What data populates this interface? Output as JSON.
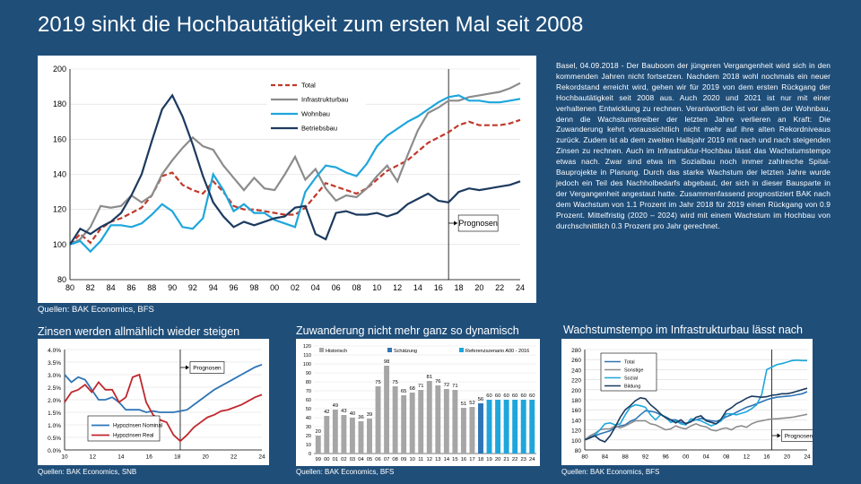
{
  "title": "2019 sinkt die Hochbautätigkeit zum ersten Mal seit 2008",
  "body_text": "Basel, 04.09.2018 - Der Bauboom der jüngeren Vergangenheit wird sich in den kommenden Jahren nicht fortsetzen. Nachdem 2018 wohl nochmals ein neuer Rekordstand erreicht wird, gehen wir für 2019 von dem ersten Rückgang der Hochbautätigkeit seit 2008 aus. Auch 2020 und 2021 ist nur mit einer verhaltenen Entwicklung zu rechnen. Verantwortlich ist vor allem der Wohnbau, denn die Wachstumstreiber der letzten Jahre verlieren an Kraft: Die Zuwanderung kehrt voraussichtlich nicht mehr auf ihre alten Rekordniveaus zurück. Zudem ist ab dem zweiten Halbjahr 2019 mit nach und nach steigenden Zinsen zu rechnen. Auch im Infrastruktur-Hochbau lässt das Wachstumstempo etwas nach. Zwar sind etwa im Sozialbau noch immer zahlreiche Spital-Bauprojekte in Planung. Durch das starke Wachstum der letzten Jahre wurde jedoch ein Teil des Nachholbedarfs abgebaut, der sich in dieser Bausparte in der Vergangenheit angestaut hatte. Zusammenfassend prognostiziert BAK nach dem Wachstum von 1.1 Prozent im Jahr 2018 für 2019 einen Rückgang von 0.9 Prozent. Mittelfristig (2020 – 2024) wird mit einem Wachstum im Hochbau von durchschnittlich 0.3 Prozent pro Jahr gerechnet.",
  "sources": {
    "main": "Quellen: BAK Economics, BFS",
    "zinsen": "Quellen: BAK Economics, SNB",
    "zuwanderung": "Quellen: BAK Economics, BFS",
    "infra": "Quellen: BAK Economics, BFS"
  },
  "subtitles": {
    "zinsen": "Zinsen werden allmählich wieder steigen",
    "zuwanderung": "Zuwanderung nicht mehr ganz so dynamisch",
    "infra": "Wachstumstempo im Infrastrukturbau lässt nach"
  },
  "chart_data": [
    {
      "type": "line",
      "x": [
        1980,
        1981,
        1982,
        1983,
        1984,
        1985,
        1986,
        1987,
        1988,
        1989,
        1990,
        1991,
        1992,
        1993,
        1994,
        1995,
        1996,
        1997,
        1998,
        1999,
        2000,
        2001,
        2002,
        2003,
        2004,
        2005,
        2006,
        2007,
        2008,
        2009,
        2010,
        2011,
        2012,
        2013,
        2014,
        2015,
        2016,
        2017,
        2018,
        2019,
        2020,
        2021,
        2022,
        2023,
        2024
      ],
      "xticks": [
        "80",
        "82",
        "84",
        "86",
        "88",
        "90",
        "92",
        "94",
        "96",
        "98",
        "00",
        "02",
        "04",
        "06",
        "08",
        "10",
        "12",
        "14",
        "16",
        "18",
        "20",
        "22",
        "24"
      ],
      "ylim": [
        80,
        200
      ],
      "yticks": [
        80,
        100,
        120,
        140,
        160,
        180,
        200
      ],
      "annotation": "Prognosen",
      "forecast_start": 2017,
      "series": [
        {
          "name": "Total",
          "color": "#c0392b",
          "dashed": true,
          "values": [
            100,
            106,
            101,
            109,
            113,
            115,
            118,
            121,
            128,
            139,
            141,
            134,
            131,
            129,
            136,
            130,
            122,
            120,
            120,
            119,
            118,
            117,
            117,
            121,
            128,
            135,
            133,
            131,
            129,
            132,
            137,
            142,
            145,
            148,
            153,
            158,
            161,
            164,
            168,
            170,
            168,
            168,
            168,
            169,
            171
          ]
        },
        {
          "name": "Infrastrukturbau",
          "color": "#8c8c8c",
          "dashed": false,
          "values": [
            100,
            103,
            110,
            122,
            121,
            122,
            128,
            124,
            128,
            140,
            148,
            155,
            161,
            156,
            154,
            145,
            138,
            131,
            138,
            132,
            131,
            140,
            150,
            137,
            143,
            132,
            125,
            128,
            127,
            132,
            139,
            145,
            136,
            151,
            165,
            175,
            178,
            182,
            182,
            184,
            185,
            186,
            187,
            189,
            192
          ]
        },
        {
          "name": "Wohnbau",
          "color": "#1ea6dc",
          "dashed": false,
          "values": [
            100,
            102,
            96,
            102,
            111,
            111,
            110,
            112,
            117,
            123,
            119,
            110,
            109,
            115,
            140,
            131,
            119,
            123,
            118,
            118,
            114,
            112,
            110,
            130,
            138,
            145,
            144,
            141,
            139,
            146,
            156,
            162,
            166,
            170,
            173,
            177,
            181,
            184,
            185,
            182,
            182,
            181,
            181,
            182,
            183
          ]
        },
        {
          "name": "Betriebsbau",
          "color": "#1c3a5e",
          "dashed": false,
          "values": [
            100,
            109,
            106,
            110,
            113,
            118,
            128,
            140,
            159,
            177,
            185,
            173,
            157,
            139,
            124,
            116,
            110,
            113,
            111,
            113,
            115,
            116,
            121,
            122,
            106,
            103,
            118,
            119,
            117,
            117,
            118,
            116,
            118,
            123,
            126,
            129,
            125,
            124,
            130,
            132,
            131,
            132,
            133,
            134,
            136
          ]
        }
      ]
    },
    {
      "type": "line",
      "x": [
        2010,
        2010.5,
        2011,
        2011.5,
        2012,
        2012.5,
        2013,
        2013.5,
        2014,
        2014.5,
        2015,
        2015.5,
        2016,
        2016.5,
        2017,
        2017.5,
        2018,
        2018.5,
        2019,
        2019.5,
        2020,
        2020.5,
        2021,
        2021.5,
        2022,
        2022.5,
        2023,
        2023.5,
        2024,
        2024.5
      ],
      "xticks": [
        "10",
        "12",
        "14",
        "16",
        "18",
        "20",
        "22",
        "24"
      ],
      "ylim": [
        0,
        4
      ],
      "yticks": [
        "0.0%",
        "0.5%",
        "1.0%",
        "1.5%",
        "2.0%",
        "2.5%",
        "3.0%",
        "3.5%",
        "4.0%"
      ],
      "annotation": "Prognosen",
      "forecast_start": 2018.5,
      "series": [
        {
          "name": "Hypozinsen Nominal",
          "color": "#2e75b6",
          "values": [
            3.0,
            2.7,
            2.9,
            2.8,
            2.4,
            2.0,
            2.0,
            2.1,
            1.9,
            1.6,
            1.6,
            1.6,
            1.5,
            1.55,
            1.5,
            1.5,
            1.5,
            1.55,
            1.6,
            1.8,
            2.0,
            2.2,
            2.4,
            2.55,
            2.7,
            2.85,
            3.0,
            3.15,
            3.3,
            3.4
          ]
        },
        {
          "name": "Hypozinsen Real",
          "color": "#c0282d",
          "values": [
            1.9,
            2.3,
            2.4,
            2.6,
            2.3,
            2.7,
            2.4,
            2.4,
            1.9,
            2.1,
            2.9,
            3.0,
            1.9,
            1.4,
            1.2,
            1.1,
            0.6,
            0.35,
            0.6,
            0.9,
            1.1,
            1.3,
            1.4,
            1.55,
            1.6,
            1.7,
            1.8,
            1.95,
            2.1,
            2.2
          ]
        }
      ]
    },
    {
      "type": "bar",
      "categories": [
        "99",
        "00",
        "01",
        "02",
        "03",
        "04",
        "05",
        "06",
        "07",
        "08",
        "09",
        "10",
        "11",
        "12",
        "13",
        "14",
        "15",
        "16",
        "17",
        "18",
        "19",
        "20",
        "21",
        "22",
        "23",
        "24"
      ],
      "values": [
        20,
        42,
        49,
        43,
        40,
        36,
        39,
        75,
        98,
        75,
        65,
        68,
        71,
        81,
        76,
        72,
        71,
        51,
        52,
        56,
        60,
        60,
        60,
        60,
        60,
        60
      ],
      "ylim": [
        0,
        120
      ],
      "yticks": [
        0,
        10,
        20,
        30,
        40,
        50,
        60,
        70,
        80,
        90,
        100,
        110,
        120
      ],
      "legend": [
        "Historisch",
        "Schätzung",
        "Referenzszenario A00 - 2016"
      ],
      "colors": {
        "Historisch": "#a6a6a6",
        "Schätzung": "#2e75b6",
        "Referenzszenario A00 - 2016": "#1ea6dc"
      },
      "kind_per_bar": [
        "h",
        "h",
        "h",
        "h",
        "h",
        "h",
        "h",
        "h",
        "h",
        "h",
        "h",
        "h",
        "h",
        "h",
        "h",
        "h",
        "h",
        "h",
        "h",
        "s",
        "r",
        "r",
        "r",
        "r",
        "r",
        "r"
      ]
    },
    {
      "type": "line",
      "x": [
        1980,
        1981,
        1982,
        1983,
        1984,
        1985,
        1986,
        1987,
        1988,
        1989,
        1990,
        1991,
        1992,
        1993,
        1994,
        1995,
        1996,
        1997,
        1998,
        1999,
        2000,
        2001,
        2002,
        2003,
        2004,
        2005,
        2006,
        2007,
        2008,
        2009,
        2010,
        2011,
        2012,
        2013,
        2014,
        2015,
        2016,
        2017,
        2018,
        2019,
        2020,
        2021,
        2022,
        2023,
        2024
      ],
      "xticks": [
        "80",
        "84",
        "88",
        "92",
        "96",
        "00",
        "04",
        "08",
        "12",
        "16",
        "20",
        "24"
      ],
      "ylim": [
        80,
        280
      ],
      "yticks": [
        80,
        100,
        120,
        140,
        160,
        180,
        200,
        220,
        240,
        260,
        280
      ],
      "annotation": "Prognosen",
      "forecast_start": 2017,
      "series": [
        {
          "name": "Total",
          "color": "#2e75b6",
          "values": [
            100,
            106,
            108,
            112,
            115,
            118,
            125,
            128,
            130,
            137,
            141,
            150,
            158,
            157,
            155,
            150,
            146,
            140,
            140,
            135,
            133,
            137,
            140,
            143,
            140,
            138,
            137,
            140,
            146,
            150,
            155,
            160,
            165,
            168,
            172,
            176,
            180,
            183,
            185,
            186,
            187,
            188,
            190,
            192,
            196
          ]
        },
        {
          "name": "Sonstige",
          "color": "#8c8c8c",
          "values": [
            100,
            108,
            113,
            120,
            122,
            122,
            128,
            124,
            128,
            133,
            138,
            138,
            138,
            132,
            130,
            125,
            120,
            122,
            128,
            124,
            122,
            128,
            132,
            128,
            126,
            120,
            118,
            122,
            124,
            120,
            126,
            128,
            125,
            132,
            136,
            138,
            140,
            142,
            142,
            143,
            144,
            145,
            147,
            149,
            151
          ]
        },
        {
          "name": "Sozial",
          "color": "#1ea6dc",
          "values": [
            100,
            104,
            110,
            120,
            132,
            134,
            130,
            132,
            150,
            165,
            170,
            168,
            165,
            150,
            140,
            150,
            145,
            135,
            138,
            132,
            130,
            142,
            140,
            138,
            133,
            128,
            132,
            138,
            152,
            152,
            150,
            153,
            156,
            162,
            170,
            190,
            240,
            245,
            250,
            252,
            255,
            258,
            259,
            258,
            258
          ]
        },
        {
          "name": "Bildung",
          "color": "#1c3a5e",
          "values": [
            100,
            104,
            108,
            100,
            96,
            108,
            125,
            145,
            160,
            168,
            178,
            184,
            182,
            170,
            162,
            152,
            144,
            140,
            134,
            140,
            132,
            136,
            145,
            148,
            138,
            135,
            132,
            142,
            158,
            164,
            172,
            177,
            183,
            187,
            186,
            185,
            186,
            189,
            190,
            192,
            192,
            194,
            197,
            200,
            203
          ]
        }
      ]
    }
  ]
}
